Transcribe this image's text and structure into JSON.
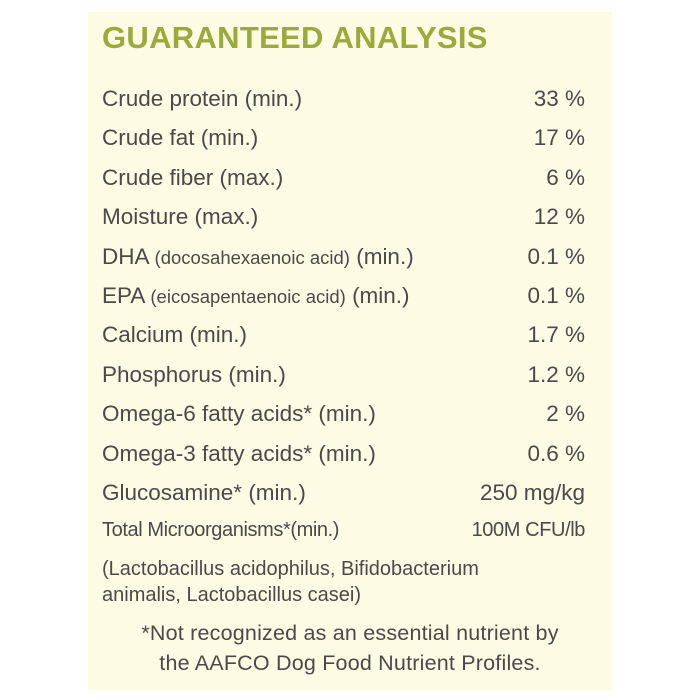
{
  "header": {
    "title": "GUARANTEED ANALYSIS"
  },
  "table": {
    "rows": [
      {
        "label": "Crude protein (min.)",
        "value": "33 %"
      },
      {
        "label": "Crude fat (min.)",
        "value": "17 %"
      },
      {
        "label": "Crude fiber (max.)",
        "value": "6 %"
      },
      {
        "label": "Moisture (max.)",
        "value": "12 %"
      },
      {
        "label": "DHA",
        "detail": "(docosahexaenoic acid)",
        "basis": "(min.)",
        "value": "0.1 %"
      },
      {
        "label": "EPA",
        "detail": "(eicosapentaenoic acid)",
        "basis": "(min.)",
        "value": "0.1 %"
      },
      {
        "label": "Calcium (min.)",
        "value": "1.7 %"
      },
      {
        "label": "Phosphorus (min.)",
        "value": "1.2 %"
      },
      {
        "label": "Omega-6 fatty acids* (min.)",
        "value": "2 %"
      },
      {
        "label": "Omega-3 fatty acids* (min.)",
        "value": "0.6 %"
      },
      {
        "label": "Glucosamine* (min.)",
        "value": "250 mg/kg"
      },
      {
        "label": "Total Microorganisms*(min.)",
        "value": "100M CFU/lb"
      }
    ],
    "source": [
      "(Lactobacillus acidophilus, Bifidobacterium",
      "animalis, Lactobacillus casei)"
    ]
  },
  "footnote": [
    "*Not recognized as an essential nutrient by",
    "the AAFCO Dog Food Nutrient Profiles."
  ]
}
